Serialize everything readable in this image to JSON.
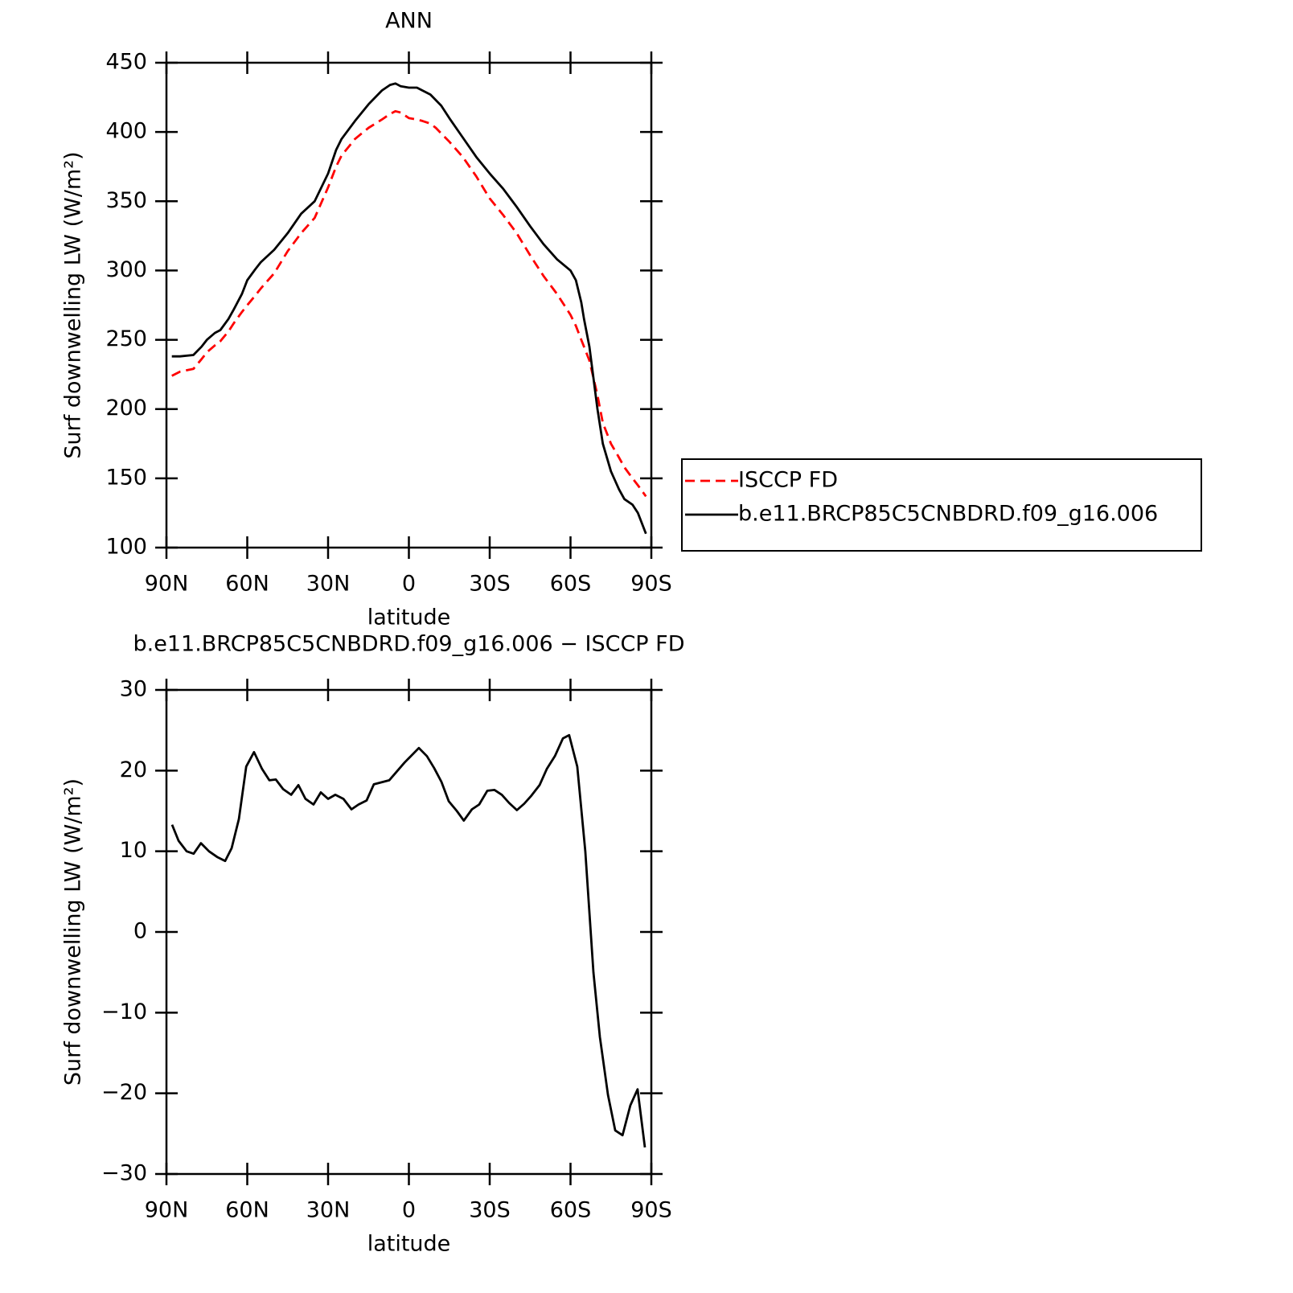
{
  "chart_data": [
    {
      "type": "line",
      "title": "ANN",
      "xlabel": "latitude",
      "ylabel": "Surf downwelling LW (W/m²)",
      "xlim": [
        90,
        -90
      ],
      "xticks": [
        {
          "value": 90,
          "label": "90N"
        },
        {
          "value": 60,
          "label": "60N"
        },
        {
          "value": 30,
          "label": "30N"
        },
        0,
        {
          "value": -30,
          "label": "30S"
        },
        {
          "value": -60,
          "label": "60S"
        },
        {
          "value": -90,
          "label": "90S"
        }
      ],
      "ylim": [
        100,
        450
      ],
      "yticks": [
        100,
        150,
        200,
        250,
        300,
        350,
        400,
        450
      ],
      "legend": "right",
      "x": [
        88,
        85,
        80,
        77,
        75,
        72,
        70,
        67,
        65,
        62,
        60,
        57,
        55,
        50,
        45,
        40,
        35,
        30,
        27,
        25,
        20,
        15,
        10,
        7,
        5,
        3,
        0,
        -3,
        -5,
        -8,
        -10,
        -12,
        -15,
        -20,
        -25,
        -30,
        -35,
        -40,
        -45,
        -50,
        -55,
        -60,
        -62,
        -64,
        -65,
        -67,
        -70,
        -72,
        -75,
        -78,
        -80,
        -83,
        -85,
        -88
      ],
      "series": [
        {
          "name": "ISCCP FD",
          "color": "#ff0000",
          "dash": true,
          "values": [
            224,
            227,
            229,
            236,
            241,
            246,
            249,
            256,
            262,
            270,
            275,
            282,
            287,
            298,
            314,
            327,
            338,
            360,
            375,
            383,
            395,
            403,
            409,
            413,
            415,
            414,
            410,
            409,
            408,
            406,
            403,
            399,
            393,
            382,
            368,
            352,
            340,
            327,
            311,
            296,
            283,
            268,
            260,
            250,
            245,
            235,
            210,
            190,
            175,
            165,
            158,
            150,
            145,
            137
          ]
        },
        {
          "name": "b.e11.BRCP85C5CNBDRD.f09_g16.006",
          "color": "#000000",
          "dash": false,
          "values": [
            238,
            238,
            239,
            245,
            250,
            255,
            257,
            265,
            272,
            283,
            293,
            301,
            306,
            315,
            327,
            341,
            350,
            370,
            387,
            395,
            408,
            420,
            430,
            434,
            435,
            433,
            432,
            432,
            430,
            427,
            423,
            419,
            410,
            396,
            382,
            370,
            359,
            346,
            332,
            319,
            308,
            300,
            293,
            277,
            265,
            245,
            200,
            175,
            155,
            142,
            135,
            131,
            125,
            110
          ]
        }
      ]
    },
    {
      "type": "line",
      "title": "b.e11.BRCP85C5CNBDRD.f09_g16.006 − ISCCP FD",
      "xlabel": "latitude",
      "ylabel": "Surf downwelling LW (W/m²)",
      "xlim": [
        90,
        -90
      ],
      "xticks": [
        {
          "value": 90,
          "label": "90N"
        },
        {
          "value": 60,
          "label": "60N"
        },
        {
          "value": 30,
          "label": "30N"
        },
        0,
        {
          "value": -30,
          "label": "30S"
        },
        {
          "value": -60,
          "label": "60S"
        },
        {
          "value": -90,
          "label": "90S"
        }
      ],
      "ylim": [
        -30,
        30
      ],
      "yticks": [
        {
          "value": -30,
          "label": "−30"
        },
        {
          "value": -20,
          "label": "−20"
        },
        {
          "value": -10,
          "label": "−10"
        },
        0,
        10,
        20,
        30
      ],
      "color": "#000000",
      "x": [
        87.9,
        85.5,
        82.5,
        79.9,
        77.2,
        74.2,
        71.2,
        68.2,
        65.8,
        63.1,
        60.4,
        57.5,
        54.5,
        51.8,
        49.4,
        46.7,
        43.7,
        41,
        38.4,
        35.4,
        32.7,
        30,
        27.3,
        24.3,
        21.3,
        18.7,
        15.7,
        13,
        7.3,
        1.6,
        -3.7,
        -6.7,
        -9.4,
        -12.1,
        -14.8,
        -17.8,
        -20.4,
        -23.4,
        -26.1,
        -29.1,
        -31.8,
        -34.5,
        -37.2,
        -40.1,
        -42.8,
        -45.5,
        -48.5,
        -51.2,
        -54.2,
        -57.2,
        -59.5,
        -62.5,
        -65.5,
        -68.5,
        -70.9,
        -73.9,
        -76.6,
        -79.3,
        -82.2,
        -84.9,
        -87.6
      ],
      "values": [
        13.3,
        11.3,
        10,
        9.7,
        11,
        10,
        9.3,
        8.8,
        10.4,
        14,
        20.5,
        22.3,
        20.2,
        18.8,
        18.9,
        17.7,
        17,
        18.2,
        16.5,
        15.8,
        17.3,
        16.5,
        17,
        16.5,
        15.2,
        15.8,
        16.3,
        18.3,
        18.8,
        21,
        22.8,
        21.8,
        20.3,
        18.6,
        16.2,
        15,
        13.8,
        15.2,
        15.8,
        17.5,
        17.6,
        17,
        16,
        15.1,
        15.9,
        16.9,
        18.2,
        20.2,
        21.8,
        24,
        24.4,
        20.5,
        10,
        -5,
        -13,
        -20.2,
        -24.6,
        -25.2,
        -21.5,
        -19.5,
        -26.7
      ]
    }
  ]
}
